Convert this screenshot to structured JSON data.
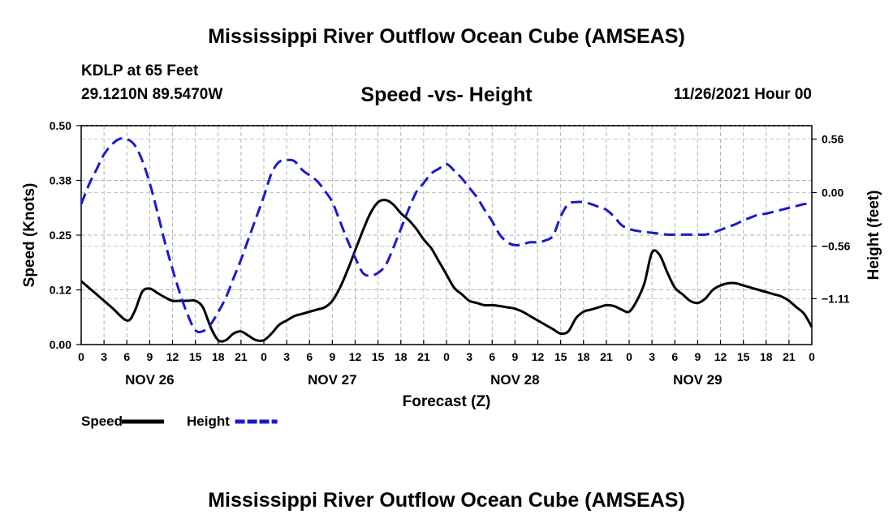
{
  "header": {
    "main_title": "Mississippi River Outflow Ocean Cube (AMSEAS)",
    "station": "KDLP at 65 Feet",
    "coords": "29.1210N  89.5470W",
    "datetime": "11/26/2021 Hour 00",
    "footer_title": "Mississippi River Outflow Ocean Cube (AMSEAS)"
  },
  "chart_data": {
    "type": "line",
    "title": "Speed -vs- Height",
    "xlabel": "Forecast (Z)",
    "ylabel": "Speed (Knots)",
    "y2label": "Height (feet)",
    "xlim": [
      0,
      96
    ],
    "ylim": [
      0,
      0.5
    ],
    "y2lim": [
      -1.59,
      0.7
    ],
    "x_tick_labels": [
      "0",
      "3",
      "6",
      "9",
      "12",
      "15",
      "18",
      "21",
      "0",
      "3",
      "6",
      "9",
      "12",
      "15",
      "18",
      "21",
      "0",
      "3",
      "6",
      "9",
      "12",
      "15",
      "18",
      "21",
      "0",
      "3",
      "6",
      "9",
      "12",
      "15",
      "18",
      "21",
      "0"
    ],
    "day_labels": [
      {
        "hour": 9,
        "label": "NOV 26"
      },
      {
        "hour": 33,
        "label": "NOV 27"
      },
      {
        "hour": 57,
        "label": "NOV 28"
      },
      {
        "hour": 81,
        "label": "NOV 29"
      }
    ],
    "y_ticks": [
      "0.00",
      "0.12",
      "0.25",
      "0.38",
      "0.50"
    ],
    "y_tick_values": [
      0,
      0.125,
      0.25,
      0.375,
      0.5
    ],
    "y2_ticks": [
      "0.56",
      "0.00",
      "−0.56",
      "−1.11"
    ],
    "y2_tick_values": [
      0.56,
      0.0,
      -0.56,
      -1.11
    ],
    "legend": [
      {
        "label": "Speed",
        "color": "#000000",
        "style": "solid"
      },
      {
        "label": "Height",
        "color": "#1a1acc",
        "style": "dashed"
      }
    ],
    "series": [
      {
        "name": "Speed",
        "axis": "left",
        "color": "#000000",
        "x": [
          0,
          2,
          4,
          6,
          7,
          8,
          9,
          10,
          11,
          12,
          13,
          14,
          15,
          16,
          17,
          18,
          19,
          20,
          21,
          22,
          23,
          24,
          25,
          26,
          27,
          28,
          29,
          30,
          31,
          32,
          33,
          34,
          35,
          36,
          37,
          38,
          39,
          40,
          41,
          42,
          43,
          44,
          45,
          46,
          47,
          48,
          49,
          50,
          51,
          52,
          53,
          54,
          55,
          56,
          57,
          58,
          59,
          60,
          61,
          62,
          63,
          64,
          65,
          66,
          67,
          68,
          69,
          70,
          71,
          72,
          73,
          74,
          75,
          76,
          77,
          78,
          79,
          80,
          81,
          82,
          83,
          84,
          85,
          86,
          87,
          88,
          89,
          90,
          91,
          92,
          93,
          94,
          95,
          96
        ],
        "values": [
          0.145,
          0.115,
          0.085,
          0.055,
          0.075,
          0.12,
          0.128,
          0.118,
          0.108,
          0.1,
          0.1,
          0.1,
          0.1,
          0.085,
          0.04,
          0.01,
          0.01,
          0.025,
          0.03,
          0.02,
          0.01,
          0.01,
          0.025,
          0.045,
          0.055,
          0.065,
          0.07,
          0.075,
          0.08,
          0.085,
          0.1,
          0.13,
          0.17,
          0.215,
          0.26,
          0.3,
          0.325,
          0.33,
          0.32,
          0.3,
          0.285,
          0.265,
          0.24,
          0.22,
          0.19,
          0.16,
          0.13,
          0.115,
          0.1,
          0.095,
          0.09,
          0.09,
          0.088,
          0.085,
          0.082,
          0.075,
          0.065,
          0.055,
          0.045,
          0.035,
          0.025,
          0.03,
          0.06,
          0.075,
          0.08,
          0.085,
          0.09,
          0.088,
          0.08,
          0.075,
          0.1,
          0.14,
          0.21,
          0.205,
          0.165,
          0.13,
          0.115,
          0.1,
          0.095,
          0.105,
          0.125,
          0.135,
          0.14,
          0.14,
          0.135,
          0.13,
          0.125,
          0.12,
          0.115,
          0.11,
          0.1,
          0.085,
          0.07,
          0.04
        ]
      },
      {
        "name": "Height",
        "axis": "right",
        "color": "#1a1acc",
        "x": [
          0,
          1,
          2,
          3,
          4,
          5,
          6,
          7,
          8,
          9,
          10,
          11,
          12,
          13,
          14,
          15,
          16,
          17,
          18,
          19,
          20,
          21,
          22,
          23,
          24,
          25,
          26,
          27,
          28,
          29,
          30,
          31,
          32,
          33,
          34,
          35,
          36,
          37,
          38,
          39,
          40,
          41,
          42,
          43,
          44,
          45,
          46,
          47,
          48,
          49,
          50,
          51,
          52,
          53,
          54,
          55,
          56,
          57,
          58,
          59,
          60,
          61,
          62,
          63,
          64,
          65,
          66,
          67,
          68,
          69,
          70,
          71,
          72,
          73,
          74,
          75,
          76,
          77,
          78,
          79,
          80,
          81,
          82,
          83,
          84,
          85,
          86,
          87,
          88,
          89,
          90,
          91,
          92,
          93,
          94,
          95,
          96
        ],
        "values": [
          -0.12,
          0.08,
          0.24,
          0.4,
          0.5,
          0.56,
          0.56,
          0.5,
          0.34,
          0.1,
          -0.2,
          -0.52,
          -0.8,
          -1.06,
          -1.28,
          -1.44,
          -1.45,
          -1.38,
          -1.25,
          -1.1,
          -0.9,
          -0.7,
          -0.48,
          -0.26,
          -0.04,
          0.2,
          0.32,
          0.34,
          0.33,
          0.24,
          0.18,
          0.12,
          0.02,
          -0.1,
          -0.3,
          -0.5,
          -0.68,
          -0.84,
          -0.87,
          -0.84,
          -0.76,
          -0.58,
          -0.38,
          -0.18,
          0.0,
          0.1,
          0.2,
          0.25,
          0.3,
          0.23,
          0.15,
          0.05,
          -0.05,
          -0.18,
          -0.3,
          -0.44,
          -0.52,
          -0.55,
          -0.54,
          -0.52,
          -0.52,
          -0.5,
          -0.45,
          -0.25,
          -0.12,
          -0.1,
          -0.1,
          -0.12,
          -0.15,
          -0.18,
          -0.25,
          -0.34,
          -0.38,
          -0.4,
          -0.41,
          -0.42,
          -0.43,
          -0.44,
          -0.44,
          -0.44,
          -0.44,
          -0.44,
          -0.44,
          -0.42,
          -0.39,
          -0.36,
          -0.33,
          -0.29,
          -0.26,
          -0.23,
          -0.22,
          -0.2,
          -0.18,
          -0.16,
          -0.14,
          -0.12,
          -0.12
        ]
      }
    ]
  }
}
